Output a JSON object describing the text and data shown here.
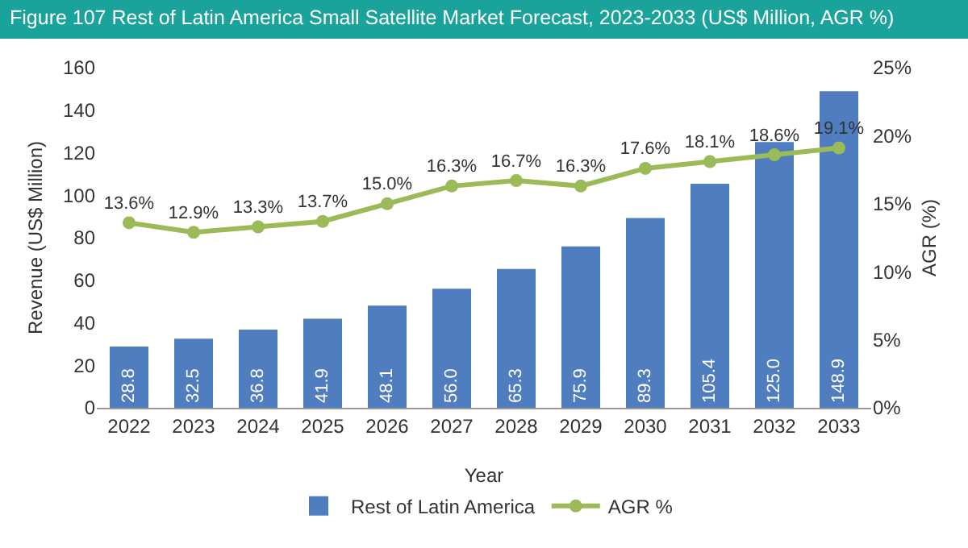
{
  "chart_data": {
    "type": "bar",
    "title": "Figure 107 Rest of Latin America Small Satellite Market Forecast, 2023-2033 (US$ Million, AGR %)",
    "xlabel": "Year",
    "ylabel": "Revenue (US$ Million)",
    "y2label": "AGR (%)",
    "categories": [
      "2022",
      "2023",
      "2024",
      "2025",
      "2026",
      "2027",
      "2028",
      "2029",
      "2030",
      "2031",
      "2032",
      "2033"
    ],
    "series": [
      {
        "name": "Rest of Latin America",
        "color": "#4f7dbf",
        "values": [
          28.8,
          32.5,
          36.8,
          41.9,
          48.1,
          56.0,
          65.3,
          75.9,
          89.3,
          105.4,
          125.0,
          148.9
        ],
        "value_labels": [
          "28.8",
          "32.5",
          "36.8",
          "41.9",
          "48.1",
          "56.0",
          "65.3",
          "75.9",
          "89.3",
          "105.4",
          "125.0",
          "148.9"
        ]
      },
      {
        "name": "AGR %",
        "type": "line",
        "axis": "y2",
        "color": "#9bbb59",
        "values": [
          13.6,
          12.9,
          13.3,
          13.7,
          15.0,
          16.3,
          16.7,
          16.3,
          17.6,
          18.1,
          18.6,
          19.1
        ],
        "value_labels": [
          "13.6%",
          "12.9%",
          "13.3%",
          "13.7%",
          "15.0%",
          "16.3%",
          "16.7%",
          "16.3%",
          "17.6%",
          "18.1%",
          "18.6%",
          "19.1%"
        ]
      }
    ],
    "ylim": [
      0,
      160
    ],
    "yticks": [
      0,
      20,
      40,
      60,
      80,
      100,
      120,
      140,
      160
    ],
    "y2lim": [
      0,
      25
    ],
    "y2ticks": [
      {
        "value": 0,
        "label": "0%"
      },
      {
        "value": 5,
        "label": "5%"
      },
      {
        "value": 10,
        "label": "10%"
      },
      {
        "value": 15,
        "label": "15%"
      },
      {
        "value": 20,
        "label": "20%"
      },
      {
        "value": 25,
        "label": "25%"
      }
    ],
    "legend": "bottom",
    "marker": "circle",
    "line_style": "solid"
  }
}
